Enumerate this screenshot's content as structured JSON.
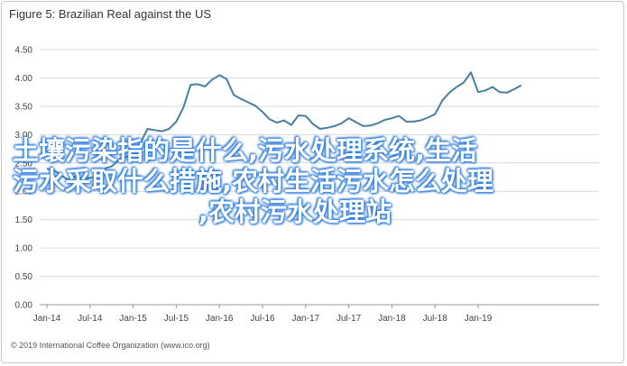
{
  "chart_data": {
    "type": "line",
    "title": "Figure 5: Brazilian Real against the US",
    "xlabel": "",
    "ylabel": "",
    "ylim": [
      0.0,
      4.5
    ],
    "yticks": [
      "4.50",
      "4.00",
      "3.50",
      "3.00",
      "2.50",
      "2.00",
      "1.50",
      "1.00",
      "0.50",
      "0.00"
    ],
    "xticks": [
      "Jan-14",
      "Jul-14",
      "Jan-15",
      "Jul-15",
      "Jan-16",
      "Jul-16",
      "Jan-17",
      "Jul-17",
      "Jan-18",
      "Jul-18",
      "Jan-19"
    ],
    "line_color": "#4a7fa0",
    "grid": true,
    "series": [
      {
        "values": [
          2.4,
          2.37,
          2.28,
          2.2,
          2.27,
          2.22,
          2.24,
          2.25,
          2.4,
          2.44,
          2.55,
          2.61,
          2.63,
          2.85,
          3.1,
          3.08,
          3.06,
          3.1,
          3.23,
          3.48,
          3.88,
          3.89,
          3.85,
          3.97,
          4.05,
          3.98,
          3.7,
          3.63,
          3.57,
          3.51,
          3.4,
          3.27,
          3.21,
          3.25,
          3.17,
          3.34,
          3.33,
          3.19,
          3.1,
          3.12,
          3.15,
          3.2,
          3.29,
          3.22,
          3.15,
          3.16,
          3.2,
          3.26,
          3.29,
          3.33,
          3.23,
          3.23,
          3.25,
          3.3,
          3.36,
          3.6,
          3.74,
          3.84,
          3.92,
          4.1,
          3.75,
          3.78,
          3.84,
          3.75,
          3.74,
          3.8,
          3.87
        ]
      }
    ]
  },
  "overlay_text": {
    "line1": "土壤污染指的是什么,污水处理系统,生活",
    "line2": "污水采取什么措施,农村生活污水怎么处理",
    "line3": ",农村污水处理站"
  },
  "copyright": "© 2019 International Coffee Organization (www.ico.org)"
}
